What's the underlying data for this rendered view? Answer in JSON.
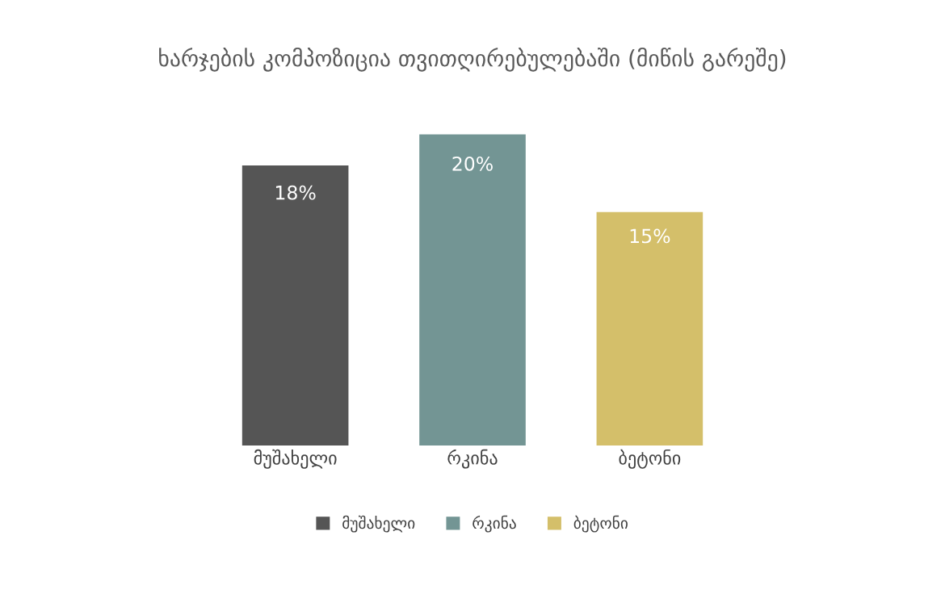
{
  "chart_data": {
    "type": "bar",
    "title": "ხარჯების კომპოზიცია თვითღირებულებაში (მიწის გარეშე)",
    "categories": [
      "მუშახელი",
      "რკინა",
      "ბეტონი"
    ],
    "series": [
      {
        "name": "მუშახელი",
        "color": "#555555",
        "values": [
          18,
          null,
          null
        ],
        "value_labels": [
          "18%",
          null,
          null
        ]
      },
      {
        "name": "რკინა",
        "color": "#739594",
        "values": [
          null,
          20,
          null
        ],
        "value_labels": [
          null,
          "20%",
          null
        ]
      },
      {
        "name": "ბეტონი",
        "color": "#d4bf6a",
        "values": [
          null,
          null,
          15
        ],
        "value_labels": [
          null,
          null,
          "15%"
        ]
      }
    ],
    "legend": "bottom",
    "grid": false,
    "tick_labels": "x"
  }
}
